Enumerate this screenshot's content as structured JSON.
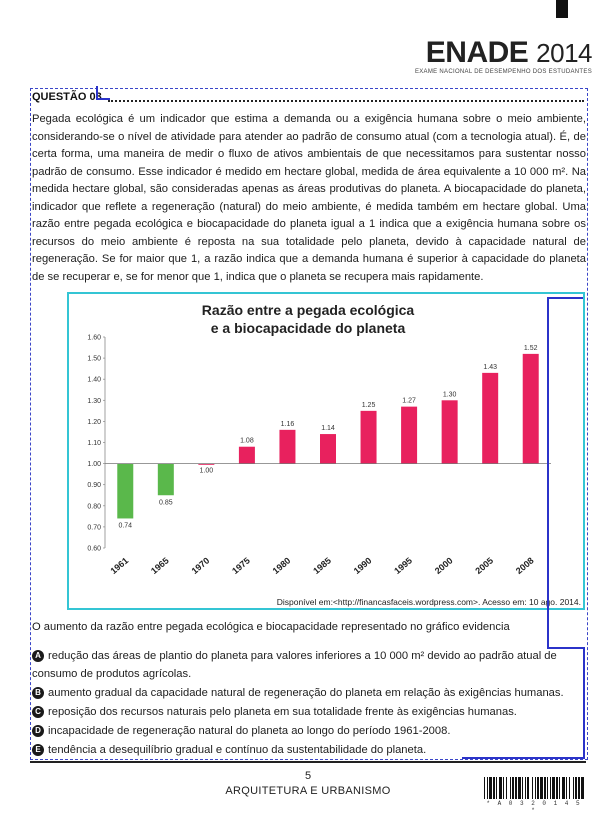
{
  "logo": {
    "brand": "ENADE",
    "year": "2014",
    "subtitle": "EXAME NACIONAL DE DESEMPENHO DOS ESTUDANTES"
  },
  "question": {
    "title": "QUESTÃO 03",
    "paragraph": "Pegada ecológica é um indicador que estima a demanda ou a exigência humana sobre o meio ambiente, considerando-se o nível de atividade para atender ao padrão de consumo atual (com a tecnologia atual). É, de certa forma, uma maneira de medir o fluxo de ativos ambientais de que necessitamos para sustentar nosso padrão de consumo. Esse indicador é medido em hectare global, medida de área equivalente a 10 000 m². Na medida hectare global, são consideradas apenas as áreas produtivas do planeta. A biocapacidade do planeta, indicador que reflete a regeneração (natural) do meio ambiente, é medida também em hectare global. Uma razão entre pegada ecológica e biocapacidade do planeta igual a 1 indica que a exigência humana sobre os recursos do meio ambiente é reposta na sua totalidade pelo planeta, devido à capacidade natural de regeneração. Se for maior que 1, a razão indica que a demanda humana é superior à capacidade do planeta de se recuperar e, se for menor que 1, indica que o planeta se recupera mais rapidamente.",
    "stem": "O aumento da razão entre pegada ecológica e biocapacidade representado no gráfico evidencia",
    "options": [
      {
        "letter": "A",
        "text": "redução das áreas de plantio do planeta para valores inferiores a 10 000 m² devido ao padrão atual de consumo de produtos agrícolas."
      },
      {
        "letter": "B",
        "text": "aumento gradual da capacidade natural de regeneração do planeta em relação às exigências humanas."
      },
      {
        "letter": "C",
        "text": "reposição dos recursos naturais pelo planeta em sua totalidade frente às exigências humanas."
      },
      {
        "letter": "D",
        "text": "incapacidade de regeneração natural do planeta ao longo do período 1961-2008."
      },
      {
        "letter": "E",
        "text": "tendência a desequilíbrio gradual e contínuo da sustentabilidade do planeta."
      }
    ]
  },
  "chart_data": {
    "type": "bar",
    "title_line1": "Razão entre a pegada ecológica",
    "title_line2": "e a biocapacidade do planeta",
    "categories": [
      "1961",
      "1965",
      "1970",
      "1975",
      "1980",
      "1985",
      "1990",
      "1995",
      "2000",
      "2005",
      "2008"
    ],
    "values": [
      0.74,
      0.85,
      1.0,
      1.08,
      1.16,
      1.14,
      1.25,
      1.27,
      1.3,
      1.43,
      1.52
    ],
    "value_labels": [
      "0.74",
      "0.85",
      "1.00",
      "1.08",
      "1.16",
      "1.14",
      "1.25",
      "1.27",
      "1.30",
      "1.43",
      "1.52"
    ],
    "baseline": 1.0,
    "ylim": [
      0.6,
      1.6
    ],
    "yticks": [
      "0.60",
      "0.70",
      "0.80",
      "0.90",
      "1.00",
      "1.10",
      "1.20",
      "1.30",
      "1.40",
      "1.50",
      "1.60"
    ],
    "colors": {
      "below": "#5ab84b",
      "above": "#e8215e"
    },
    "source": "Disponível em:<http://financasfaceis.wordpress.com>. Acesso em: 10 ago. 2014."
  },
  "footer": {
    "page": "5",
    "course": "ARQUITETURA E URBANISMO",
    "code": "* A 0 3 2 0 1 4 5 *"
  }
}
